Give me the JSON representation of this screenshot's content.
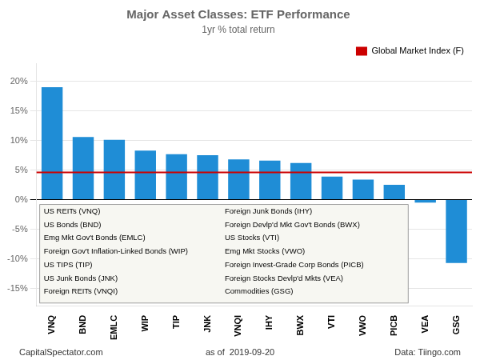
{
  "chart_data": {
    "type": "bar",
    "title": "Major Asset Classes: ETF Performance",
    "subtitle": "1yr % total return",
    "categories": [
      "VNQ",
      "BND",
      "EMLC",
      "WIP",
      "TIP",
      "JNK",
      "VNQI",
      "IHY",
      "BWX",
      "VTI",
      "VWO",
      "PICB",
      "VEA",
      "GSG"
    ],
    "values": [
      19.0,
      10.6,
      10.1,
      8.3,
      7.7,
      7.5,
      6.8,
      6.6,
      6.2,
      3.9,
      3.4,
      2.5,
      -0.5,
      -10.7
    ],
    "color": "#1f8dd6",
    "reference_line": {
      "value": 4.6,
      "label": "Global Market Index (F)",
      "color": "#cc0000"
    },
    "legend": "upper right",
    "ylim": [
      -18,
      23
    ],
    "yticks": [
      {
        "value": -15,
        "label": "-15%"
      },
      {
        "value": -10,
        "label": "-10%"
      },
      {
        "value": -5,
        "label": "-5%"
      },
      {
        "value": 0,
        "label": "0%"
      },
      {
        "value": 5,
        "label": "5%"
      },
      {
        "value": 10,
        "label": "10%"
      },
      {
        "value": 15,
        "label": "15%"
      },
      {
        "value": 20,
        "label": "20%"
      }
    ],
    "grid": true,
    "legend_items": [
      [
        "US REITs (VNQ)",
        "US Bonds (BND)",
        "Emg Mkt Gov't Bonds (EMLC)",
        "Foreign Gov't Inflation-Linked Bonds (WIP)",
        "US TIPS (TIP)",
        "US Junk Bonds (JNK)",
        "Foreign REITs (VNQI)"
      ],
      [
        "Foreign Junk Bonds (IHY)",
        "Foreign Devlp'd Mkt Gov't Bonds (BWX)",
        "US Stocks (VTI)",
        "Emg Mkt Stocks (VWO)",
        "Foreign Invest-Grade Corp Bonds (PICB)",
        "Foreign Stocks Devlp'd Mkts (VEA)",
        "Commodities (GSG)"
      ]
    ],
    "footer": [
      "CapitalSpectator.com",
      "as of  2019-09-20",
      "Data: Tiingo.com"
    ]
  }
}
